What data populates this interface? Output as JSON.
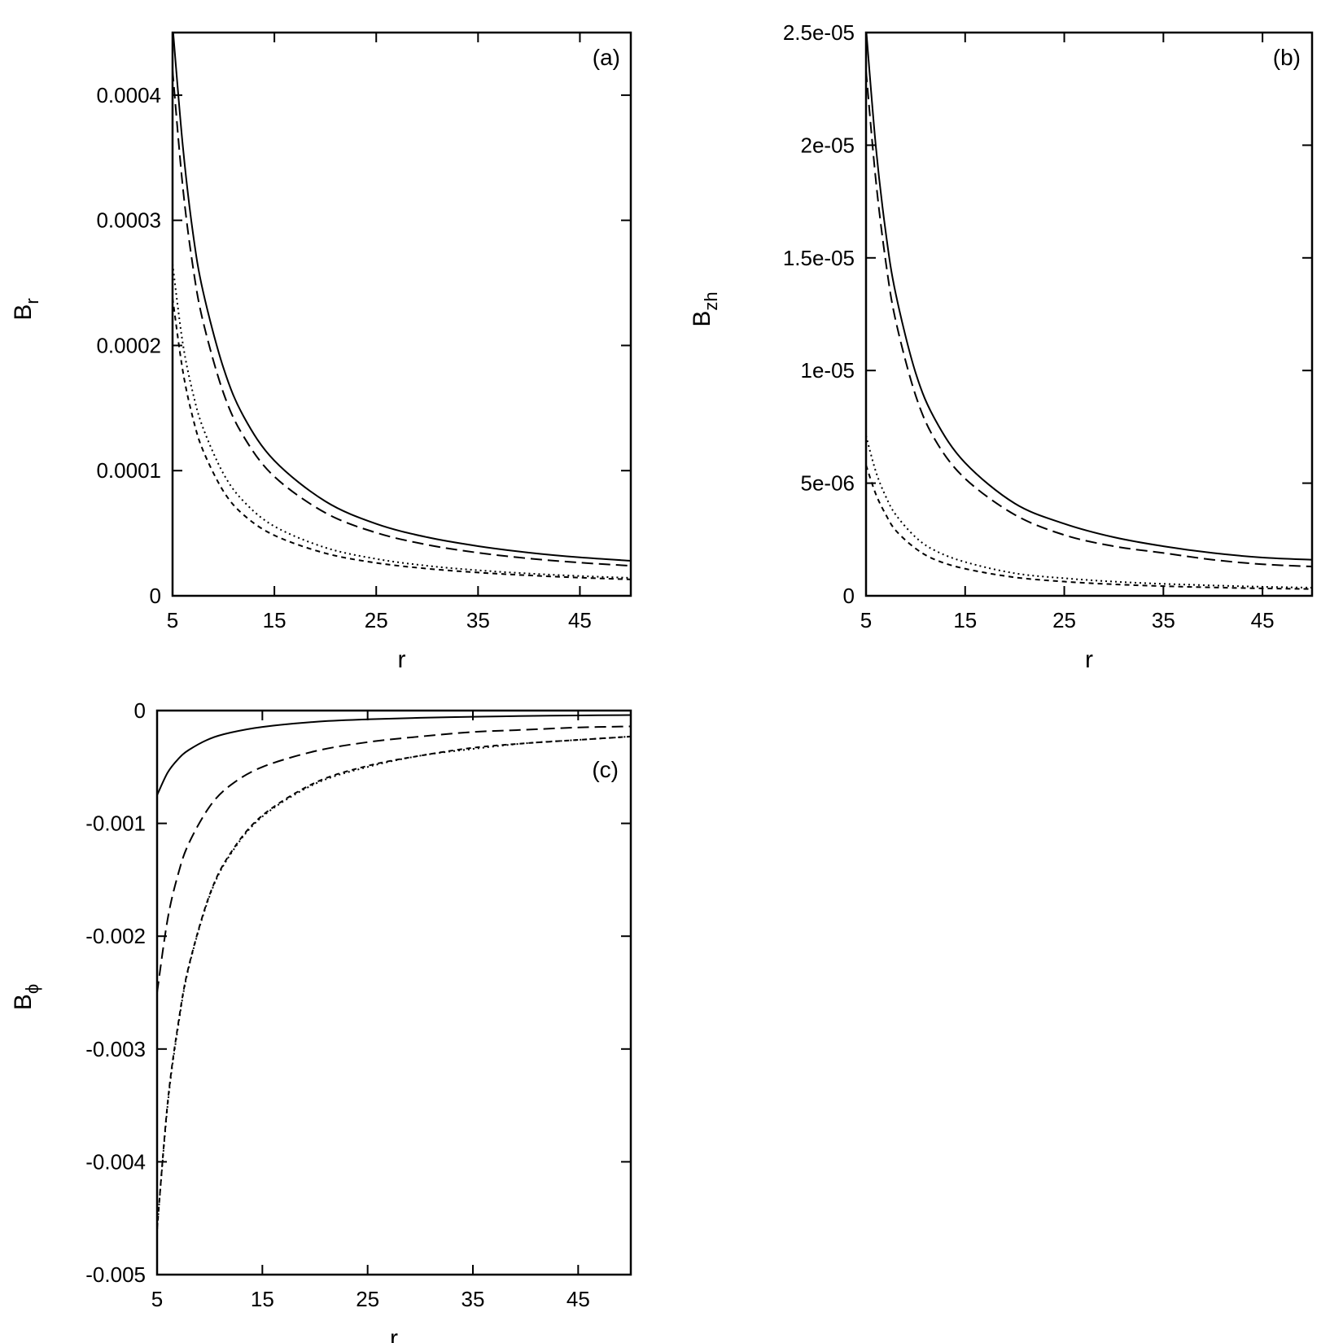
{
  "chart_data": [
    {
      "type": "line",
      "panel_label": "(a)",
      "xlabel": "r",
      "ylabel_main": "B",
      "ylabel_sub": "r",
      "xlim": [
        5,
        50
      ],
      "ylim": [
        0,
        0.00045
      ],
      "x_ticks": [
        5,
        15,
        25,
        35,
        45
      ],
      "x_tick_labels": [
        "5",
        "15",
        "25",
        "35",
        "45"
      ],
      "y_ticks": [
        0,
        0.0001,
        0.0002,
        0.0003,
        0.0004
      ],
      "y_tick_labels": [
        "0",
        "0.0001",
        "0.0002",
        "0.0003",
        "0.0004"
      ],
      "grid": false,
      "x": [
        5,
        6,
        7,
        8,
        10,
        12,
        15,
        20,
        25,
        30,
        35,
        40,
        45,
        50
      ],
      "series": [
        {
          "style": "solid",
          "values": [
            0.000456,
            0.00036,
            0.00029,
            0.000243,
            0.000182,
            0.000143,
            0.000108,
            7.55e-05,
            5.75e-05,
            4.68e-05,
            3.97e-05,
            3.45e-05,
            3.07e-05,
            2.8e-05
          ]
        },
        {
          "style": "dashed",
          "values": [
            0.00042,
            0.000327,
            0.000263,
            0.000219,
            0.000162,
            0.000127,
            9.52e-05,
            6.63e-05,
            5.04e-05,
            4.08e-05,
            3.44e-05,
            2.98e-05,
            2.65e-05,
            2.4e-05
          ]
        },
        {
          "style": "dotted",
          "values": [
            0.000265,
            0.000202,
            0.000162,
            0.000134,
            9.75e-05,
            7.53e-05,
            5.55e-05,
            3.85e-05,
            2.95e-05,
            2.4e-05,
            2.04e-05,
            1.78e-05,
            1.58e-05,
            1.43e-05
          ]
        },
        {
          "style": "short-dashed",
          "values": [
            0.000238,
            0.00018,
            0.000142,
            0.000116,
            8.35e-05,
            6.45e-05,
            4.83e-05,
            3.4e-05,
            2.63e-05,
            2.17e-05,
            1.86e-05,
            1.63e-05,
            1.45e-05,
            1.31e-05
          ]
        }
      ]
    },
    {
      "type": "line",
      "panel_label": "(b)",
      "xlabel": "r",
      "ylabel_main": "B",
      "ylabel_sub": "zh",
      "xlim": [
        5,
        50
      ],
      "ylim": [
        0,
        2.5e-05
      ],
      "x_ticks": [
        5,
        15,
        25,
        35,
        45
      ],
      "x_tick_labels": [
        "5",
        "15",
        "25",
        "35",
        "45"
      ],
      "y_ticks": [
        0,
        5e-06,
        1e-05,
        1.5e-05,
        2e-05,
        2.5e-05
      ],
      "y_tick_labels": [
        "0",
        "5e-06",
        "1e-05",
        "1.5e-05",
        "2e-05",
        "2.5e-05"
      ],
      "grid": false,
      "x": [
        5,
        6,
        7,
        8,
        10,
        12,
        15,
        20,
        25,
        30,
        35,
        40,
        45,
        50
      ],
      "series": [
        {
          "style": "solid",
          "values": [
            2.52e-05,
            1.99e-05,
            1.61e-05,
            1.34e-05,
            9.9e-06,
            7.8e-06,
            5.9e-06,
            4.1e-06,
            3.2e-06,
            2.6e-06,
            2.2e-06,
            1.9e-06,
            1.7e-06,
            1.6e-06
          ]
        },
        {
          "style": "dashed",
          "values": [
            2.33e-05,
            1.84e-05,
            1.48e-05,
            1.22e-05,
            8.9e-06,
            6.9e-06,
            5.2e-06,
            3.6e-06,
            2.7e-06,
            2.2e-06,
            1.9e-06,
            1.6e-06,
            1.4e-06,
            1.3e-06
          ]
        },
        {
          "style": "dotted",
          "values": [
            7.1e-06,
            5.5e-06,
            4.4e-06,
            3.6e-06,
            2.6e-06,
            2e-06,
            1.5e-06,
            1e-06,
            7.8e-07,
            6.3e-07,
            5.3e-07,
            4.6e-07,
            4e-07,
            3.6e-07
          ]
        },
        {
          "style": "short-dashed",
          "values": [
            5.8e-06,
            4.5e-06,
            3.6e-06,
            2.9e-06,
            2.1e-06,
            1.6e-06,
            1.2e-06,
            8.2e-07,
            6.3e-07,
            5.1e-07,
            4.3e-07,
            3.7e-07,
            3.3e-07,
            3e-07
          ]
        }
      ]
    },
    {
      "type": "line",
      "panel_label": "(c)",
      "xlabel": "r",
      "ylabel_main": "B",
      "ylabel_sub": "ϕ",
      "xlim": [
        5,
        50
      ],
      "ylim": [
        -0.005,
        0
      ],
      "x_ticks": [
        5,
        15,
        25,
        35,
        45
      ],
      "x_tick_labels": [
        "5",
        "15",
        "25",
        "35",
        "45"
      ],
      "y_ticks": [
        -0.005,
        -0.004,
        -0.003,
        -0.002,
        -0.001,
        0
      ],
      "y_tick_labels": [
        "-0.005",
        "-0.004",
        "-0.003",
        "-0.002",
        "-0.001",
        "0"
      ],
      "grid": false,
      "x": [
        5,
        6,
        7,
        8,
        10,
        12,
        15,
        20,
        25,
        30,
        35,
        40,
        45,
        50
      ],
      "series": [
        {
          "style": "solid",
          "values": [
            -0.00075,
            -0.00055,
            -0.00043,
            -0.00035,
            -0.00025,
            -0.000195,
            -0.000145,
            -0.0001,
            -7.8e-05,
            -6.4e-05,
            -5.5e-05,
            -4.8e-05,
            -4.3e-05,
            -4e-05
          ]
        },
        {
          "style": "dashed",
          "values": [
            -0.0025,
            -0.00185,
            -0.00145,
            -0.00118,
            -0.00085,
            -0.00066,
            -0.0005,
            -0.00036,
            -0.00028,
            -0.00023,
            -0.00019,
            -0.00017,
            -0.00015,
            -0.00014
          ]
        },
        {
          "style": "dotted",
          "values": [
            -0.0046,
            -0.0035,
            -0.0028,
            -0.00228,
            -0.00164,
            -0.00127,
            -0.00094,
            -0.00065,
            -0.0005,
            -0.0004,
            -0.00034,
            -0.00029,
            -0.00026,
            -0.00023
          ]
        },
        {
          "style": "short-dashed",
          "values": [
            -0.0046,
            -0.00348,
            -0.00278,
            -0.00227,
            -0.00163,
            -0.00126,
            -0.00093,
            -0.00064,
            -0.00049,
            -0.0004,
            -0.00033,
            -0.00029,
            -0.00026,
            -0.00023
          ]
        }
      ]
    }
  ]
}
